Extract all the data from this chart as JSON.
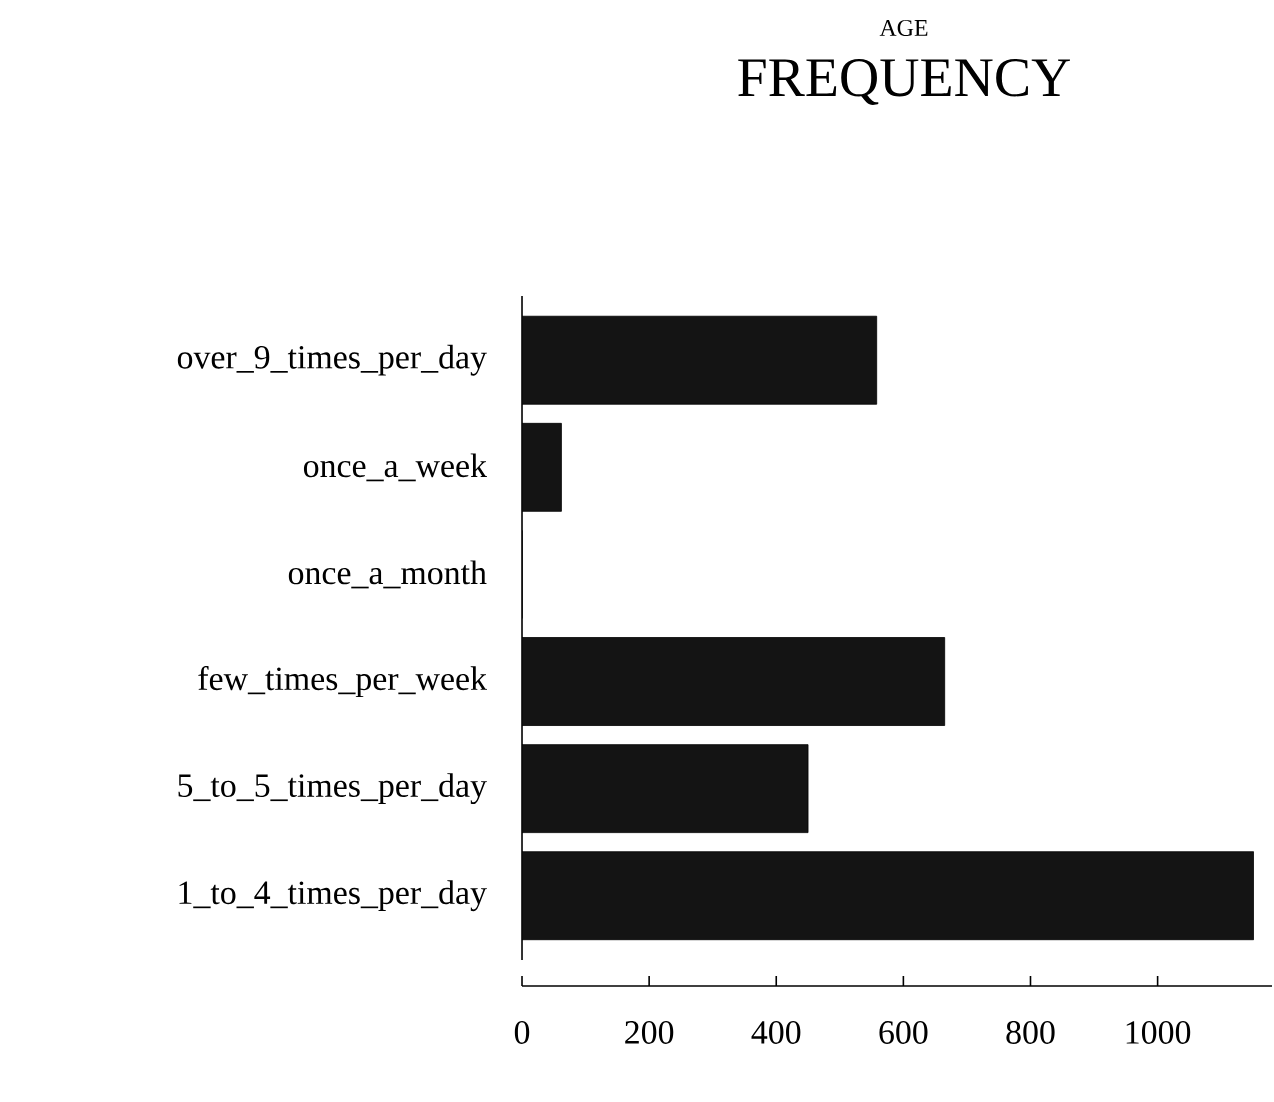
{
  "chart_data": {
    "type": "bar",
    "orientation": "horizontal",
    "subtitle": "AGE",
    "title": "FREQUENCY",
    "categories": [
      "over_9_times_per_day",
      "once_a_week",
      "once_a_month",
      "few_times_per_week",
      "5_to_5_times_per_day",
      "1_to_4_times_per_day"
    ],
    "values": [
      558,
      62,
      0,
      665,
      450,
      1151
    ],
    "color": "#141414",
    "xlim": [
      0,
      1180
    ],
    "xticks": [
      0,
      200,
      400,
      600,
      800,
      1000
    ]
  }
}
